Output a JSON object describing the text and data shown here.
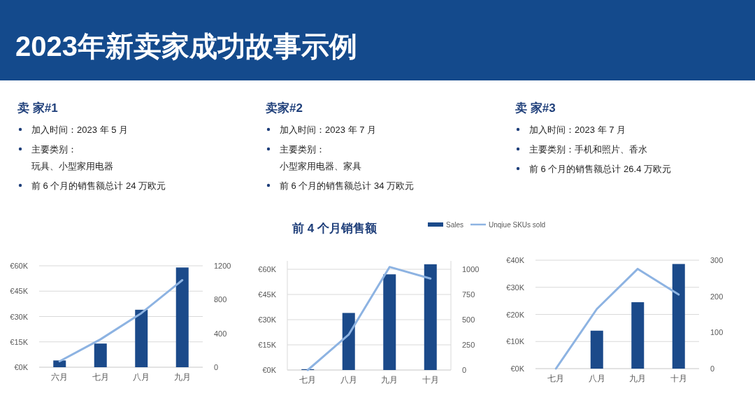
{
  "chart_data": [
    {
      "type": "other",
      "title": "2023年新卖家成功故事示例"
    },
    {
      "type": "other",
      "title": "卖 家#1",
      "annotations": [
        "加入时间：2023 年 5 月",
        "主要类别：",
        "玩具、小型家用电器",
        "前 6 个月的销售额总计 24 万欧元"
      ]
    },
    {
      "type": "other",
      "title": "卖家#2",
      "annotations": [
        "加入时间：2023 年 7 月",
        "主要类别：",
        "小型家用电器、家具",
        "前 6 个月的销售额总计 34 万欧元"
      ]
    },
    {
      "type": "other",
      "title": "卖 家#3",
      "annotations": [
        "加入时间：2023 年 7 月",
        "主要类别：手机和照片、香水",
        "前 6 个月的销售额总计 26.4 万欧元"
      ]
    },
    {
      "type": "bar",
      "categories": [
        "六月",
        "七月",
        "八月",
        "九月"
      ],
      "grid": "y",
      "ylim": [
        0,
        60
      ],
      "yticks": [
        {
          "value": 0,
          "label": "€0K"
        },
        {
          "value": 15,
          "label": "€15K"
        },
        {
          "value": 30,
          "label": "€30K"
        },
        {
          "value": 45,
          "label": "€45K"
        },
        {
          "value": 60,
          "label": "€60K"
        }
      ],
      "y2lim": [
        0,
        1200
      ],
      "y2ticks": [
        0,
        400,
        800,
        1200
      ],
      "series": [
        {
          "type": "bar",
          "color": "#1b4a8a",
          "values": [
            4,
            14,
            34,
            59
          ]
        },
        {
          "type": "line",
          "axis": "y2",
          "color": "#8db3e2",
          "values": [
            70,
            330,
            640,
            1030
          ]
        }
      ]
    },
    {
      "type": "bar",
      "title": "前 4 个月销售额",
      "categories": [
        "七月",
        "八月",
        "九月",
        "十月"
      ],
      "grid": "y",
      "legend": "top",
      "ylim": [
        0,
        65
      ],
      "yticks": [
        {
          "value": 0,
          "label": "€0K"
        },
        {
          "value": 15,
          "label": "€15K"
        },
        {
          "value": 30,
          "label": "€30K"
        },
        {
          "value": 45,
          "label": "€45K"
        },
        {
          "value": 60,
          "label": "€60K"
        }
      ],
      "y2lim": [
        0,
        1080
      ],
      "y2ticks": [
        0,
        250,
        500,
        750,
        1000
      ],
      "series": [
        {
          "name": "Sales",
          "type": "bar",
          "color": "#1b4a8a",
          "values": [
            0.5,
            34,
            57,
            63
          ]
        },
        {
          "name": "Unqiue SKUs sold",
          "type": "line",
          "axis": "y2",
          "color": "#8db3e2",
          "values": [
            0,
            350,
            1020,
            905
          ]
        }
      ]
    },
    {
      "type": "bar",
      "categories": [
        "七月",
        "八月",
        "九月",
        "十月"
      ],
      "grid": "y",
      "ylim": [
        0,
        40
      ],
      "yticks": [
        {
          "value": 0,
          "label": "€0K"
        },
        {
          "value": 10,
          "label": "€10K"
        },
        {
          "value": 20,
          "label": "€20K"
        },
        {
          "value": 30,
          "label": "€30K"
        },
        {
          "value": 40,
          "label": "€40K"
        }
      ],
      "y2lim": [
        0,
        300
      ],
      "y2ticks": [
        0,
        100,
        200,
        300
      ],
      "series": [
        {
          "type": "bar",
          "color": "#1b4a8a",
          "values": [
            0,
            14,
            24.5,
            38.6
          ]
        },
        {
          "type": "line",
          "axis": "y2",
          "color": "#8db3e2",
          "values": [
            0,
            165,
            276,
            205
          ]
        }
      ]
    }
  ]
}
